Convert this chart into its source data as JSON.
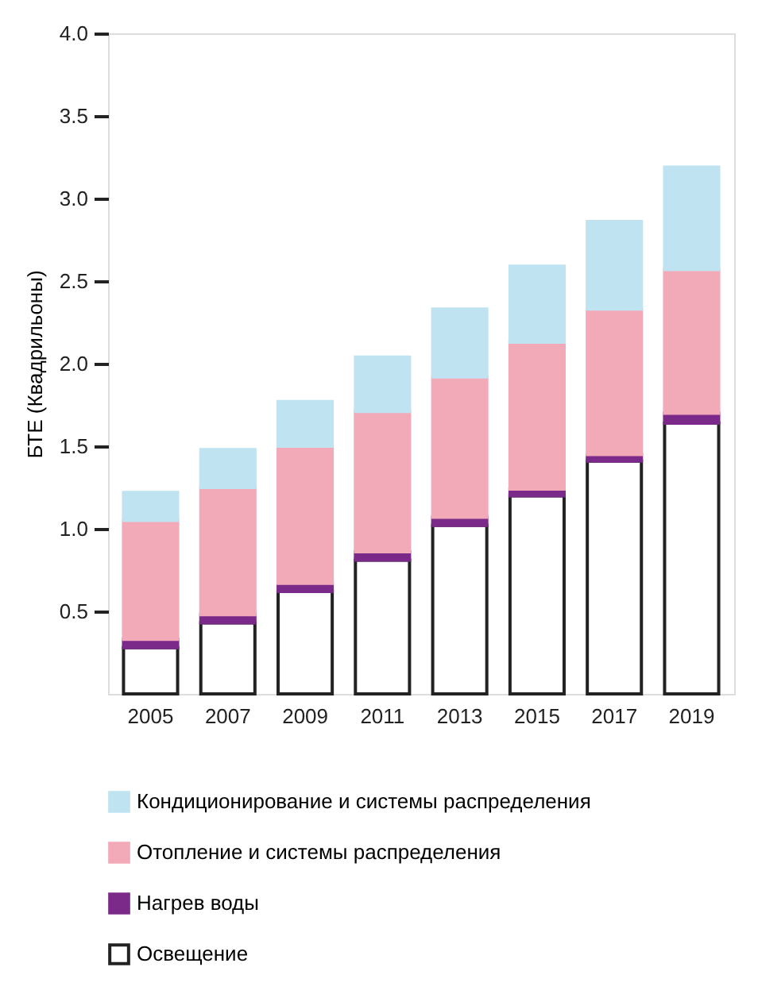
{
  "chart_data": {
    "type": "bar",
    "stacked": true,
    "ylabel": "БТЕ (Квадрильоны)",
    "categories": [
      "2005",
      "2007",
      "2009",
      "2011",
      "2013",
      "2015",
      "2017",
      "2019"
    ],
    "series": [
      {
        "name": "Освещение",
        "color": "#ffffff",
        "values": [
          0.28,
          0.43,
          0.62,
          0.81,
          1.02,
          1.2,
          1.41,
          1.64
        ]
      },
      {
        "name": "Нагрев воды",
        "color": "#7b2a8a",
        "values": [
          0.05,
          0.05,
          0.05,
          0.05,
          0.05,
          0.04,
          0.04,
          0.06
        ]
      },
      {
        "name": "Отопление и системы распределения",
        "color": "#f2a9b8",
        "values": [
          0.72,
          0.77,
          0.83,
          0.85,
          0.85,
          0.89,
          0.88,
          0.87
        ]
      },
      {
        "name": "Кондиционирование и системы распределения",
        "color": "#bfe3f1",
        "values": [
          0.17,
          0.23,
          0.27,
          0.33,
          0.41,
          0.46,
          0.53,
          0.62
        ]
      }
    ],
    "ylim": [
      0,
      4.0
    ],
    "yticks": [
      0.5,
      {
        "value": 1,
        "label": "1.0"
      },
      1.5,
      {
        "value": 2,
        "label": "2.0"
      },
      2.5,
      {
        "value": 3,
        "label": "3.0"
      },
      3.5,
      {
        "value": 4,
        "label": "4.0"
      }
    ],
    "grid": false,
    "legend": "bottom"
  }
}
